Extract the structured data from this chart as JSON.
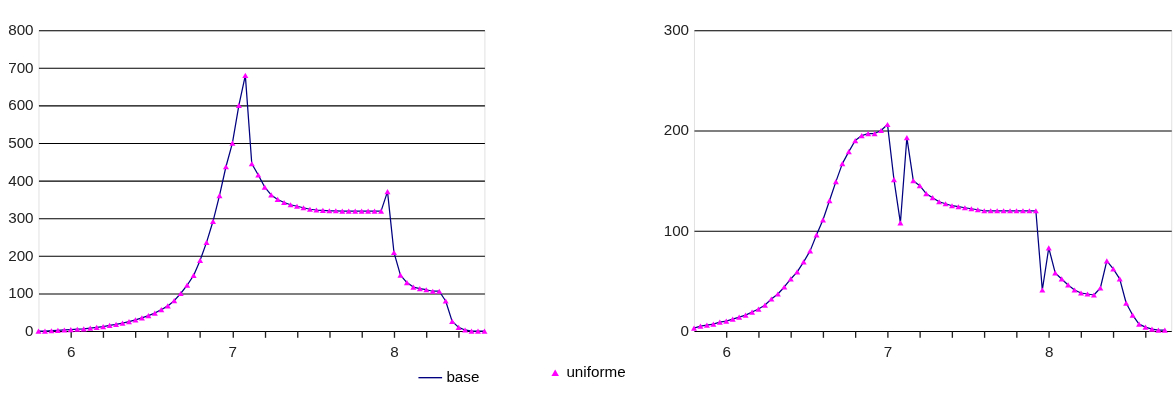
{
  "chart_data": [
    {
      "type": "line",
      "x": [
        5.8,
        5.84,
        5.88,
        5.92,
        5.96,
        6,
        6.04,
        6.08,
        6.12,
        6.16,
        6.2,
        6.24,
        6.28,
        6.32,
        6.36,
        6.4,
        6.44,
        6.48,
        6.52,
        6.56,
        6.6,
        6.64,
        6.68,
        6.72,
        6.76,
        6.8,
        6.84,
        6.88,
        6.92,
        6.96,
        7,
        7.04,
        7.08,
        7.12,
        7.16,
        7.2,
        7.24,
        7.28,
        7.32,
        7.36,
        7.4,
        7.44,
        7.48,
        7.52,
        7.56,
        7.6,
        7.64,
        7.68,
        7.72,
        7.76,
        7.8,
        7.84,
        7.88,
        7.92,
        7.96,
        8,
        8.04,
        8.08,
        8.12,
        8.16,
        8.2,
        8.24,
        8.28,
        8.32,
        8.36,
        8.4,
        8.44,
        8.48,
        8.52,
        8.56
      ],
      "xlim": [
        5.8,
        8.56
      ],
      "xticks": [
        6,
        {
          "value": 6.2,
          "label": null
        },
        {
          "value": 6.4,
          "label": null
        },
        {
          "value": 6.6,
          "label": null
        },
        {
          "value": 6.8,
          "label": null
        },
        7,
        {
          "value": 7.2,
          "label": null
        },
        {
          "value": 7.4,
          "label": null
        },
        {
          "value": 7.6,
          "label": null
        },
        {
          "value": 7.8,
          "label": null
        },
        8,
        {
          "value": 8.2,
          "label": null
        },
        {
          "value": 8.4,
          "label": null
        }
      ],
      "ylim": [
        0,
        800
      ],
      "yticks": [
        0,
        100,
        200,
        300,
        400,
        500,
        600,
        700,
        800
      ],
      "grid": "y",
      "legend": "bottom",
      "series": [
        {
          "name": "base",
          "color": "#000080",
          "marker": "none",
          "values": [
            0,
            0,
            1,
            2,
            3,
            4,
            5,
            6,
            8,
            10,
            12,
            15,
            18,
            21,
            25,
            30,
            35,
            41,
            48,
            57,
            67,
            81,
            100,
            122,
            148,
            188,
            236,
            292,
            360,
            437,
            500,
            600,
            680,
            445,
            415,
            383,
            362,
            350,
            342,
            336,
            332,
            328,
            324,
            322,
            321,
            320,
            320,
            319,
            319,
            319,
            319,
            319,
            319,
            319,
            371,
            209,
            149,
            129,
            117,
            113,
            110,
            106,
            106,
            80,
            26,
            10,
            3,
            0,
            0,
            0
          ]
        },
        {
          "name": "uniforme",
          "type": "scatter",
          "color": "#ff00ff",
          "marker": "triangle",
          "values": [
            0,
            0,
            1,
            2,
            3,
            4,
            5,
            6,
            8,
            10,
            12,
            15,
            18,
            21,
            25,
            30,
            35,
            41,
            48,
            57,
            67,
            81,
            100,
            122,
            148,
            188,
            236,
            292,
            360,
            437,
            500,
            600,
            680,
            445,
            415,
            383,
            362,
            350,
            342,
            336,
            332,
            328,
            324,
            322,
            321,
            320,
            320,
            319,
            319,
            319,
            319,
            319,
            319,
            319,
            371,
            209,
            149,
            129,
            117,
            113,
            110,
            106,
            106,
            80,
            26,
            10,
            3,
            0,
            0,
            0
          ]
        }
      ]
    },
    {
      "type": "line",
      "x": [
        5.8,
        5.84,
        5.88,
        5.92,
        5.96,
        6,
        6.04,
        6.08,
        6.12,
        6.16,
        6.2,
        6.24,
        6.28,
        6.32,
        6.36,
        6.4,
        6.44,
        6.48,
        6.52,
        6.56,
        6.6,
        6.64,
        6.68,
        6.72,
        6.76,
        6.8,
        6.84,
        6.88,
        6.92,
        6.96,
        7,
        7.04,
        7.08,
        7.12,
        7.16,
        7.2,
        7.24,
        7.28,
        7.32,
        7.36,
        7.4,
        7.44,
        7.48,
        7.52,
        7.56,
        7.6,
        7.64,
        7.68,
        7.72,
        7.76,
        7.8,
        7.84,
        7.88,
        7.92,
        7.96,
        8,
        8.04,
        8.08,
        8.12,
        8.16,
        8.2,
        8.24,
        8.28,
        8.32,
        8.36,
        8.4,
        8.44,
        8.48,
        8.52,
        8.56,
        8.6,
        8.64,
        8.68,
        8.72
      ],
      "xlim": [
        5.8,
        8.76
      ],
      "xticks": [
        6,
        {
          "value": 6.2,
          "label": null
        },
        {
          "value": 6.4,
          "label": null
        },
        {
          "value": 6.6,
          "label": null
        },
        {
          "value": 6.8,
          "label": null
        },
        7,
        {
          "value": 7.2,
          "label": null
        },
        {
          "value": 7.4,
          "label": null
        },
        {
          "value": 7.6,
          "label": null
        },
        {
          "value": 7.8,
          "label": null
        },
        8,
        {
          "value": 8.2,
          "label": null
        },
        {
          "value": 8.4,
          "label": null
        },
        {
          "value": 8.6,
          "label": null
        }
      ],
      "ylim": [
        0,
        300
      ],
      "yticks": [
        0,
        100,
        200,
        300
      ],
      "grid": "y",
      "series": [
        {
          "color": "#000080",
          "marker": "none",
          "values": [
            3,
            5,
            6,
            7,
            9,
            10,
            12,
            14,
            16,
            19,
            22,
            26,
            32,
            37,
            44,
            52,
            59,
            69,
            80,
            96,
            111,
            130,
            149,
            167,
            179,
            190,
            195,
            197,
            197,
            200,
            206,
            151,
            108,
            193,
            150,
            145,
            137,
            133,
            129,
            127,
            125,
            124,
            123,
            122,
            121,
            120,
            120,
            120,
            120,
            120,
            120,
            120,
            120,
            120,
            41,
            83,
            58,
            52,
            46,
            41,
            38,
            37,
            36,
            43,
            70,
            62,
            52,
            28,
            16,
            7,
            4,
            2,
            1,
            1
          ]
        },
        {
          "type": "scatter",
          "color": "#ff00ff",
          "marker": "triangle",
          "values": [
            3,
            5,
            6,
            7,
            9,
            10,
            12,
            14,
            16,
            19,
            22,
            26,
            32,
            37,
            44,
            52,
            59,
            69,
            80,
            96,
            111,
            130,
            149,
            167,
            179,
            190,
            195,
            197,
            197,
            200,
            206,
            151,
            108,
            193,
            150,
            145,
            137,
            133,
            129,
            127,
            125,
            124,
            123,
            122,
            121,
            120,
            120,
            120,
            120,
            120,
            120,
            120,
            120,
            120,
            41,
            83,
            58,
            52,
            46,
            41,
            38,
            37,
            36,
            43,
            70,
            62,
            52,
            28,
            16,
            7,
            4,
            2,
            1,
            1
          ]
        }
      ]
    }
  ]
}
